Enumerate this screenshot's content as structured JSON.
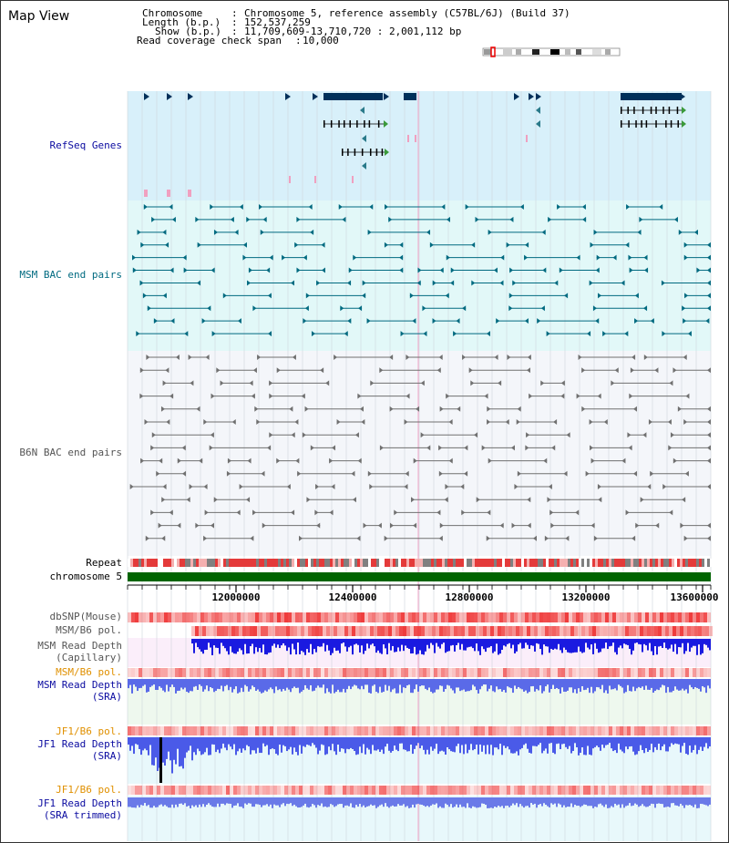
{
  "header": {
    "title": "Map View",
    "chromosome_label": "Chromosome",
    "chromosome_value": "Chromosome 5, reference assembly (C57BL/6J) (Build 37)",
    "length_label": "Length (b.p.)",
    "length_value": "152,537,259",
    "show_label": "Show (b.p.)",
    "show_value": "11,709,609-13,710,720 : 2,001,112 bp",
    "coverage_label": "Read coverage check span",
    "coverage_value": "10,000"
  },
  "tracks": {
    "refseq": "RefSeq Genes",
    "msm_bac": "MSM BAC end pairs",
    "b6n_bac": "B6N BAC end pairs",
    "repeat": "Repeat",
    "chromosome": "chromosome 5",
    "dbsnp": "dbSNP(Mouse)",
    "msm_b6_pol_1": "MSM/B6 pol.",
    "msm_depth_cap_1": "MSM Read Depth",
    "msm_depth_cap_2": "(Capillary)",
    "msm_b6_pol_2": "MSM/B6 pol.",
    "msm_depth_sra_1": "MSM Read Depth",
    "msm_depth_sra_2": "(SRA)",
    "jf1_b6_pol_1": "JF1/B6 pol.",
    "jf1_depth_sra_1": "JF1 Read Depth",
    "jf1_depth_sra_2": "(SRA)",
    "jf1_b6_pol_2": "JF1/B6 pol.",
    "jf1_trim_1": "JF1 Read Depth",
    "jf1_trim_2": "(SRA trimmed)"
  },
  "axis": {
    "ticks": [
      "12000000",
      "12400000",
      "12800000",
      "13200000",
      "13600000"
    ]
  },
  "colors": {
    "refseq_bg": "#d8f0fa",
    "msm_bg": "#e2f8f8",
    "b6n_bg": "#f4f6fa",
    "gene": "#00305a",
    "msm_feature": "#006a80",
    "b6n_feature": "#707070",
    "chromosome_bar": "#006400",
    "depth_blue": "#1a1ae0",
    "pol_red": "#ef3a3a"
  }
}
